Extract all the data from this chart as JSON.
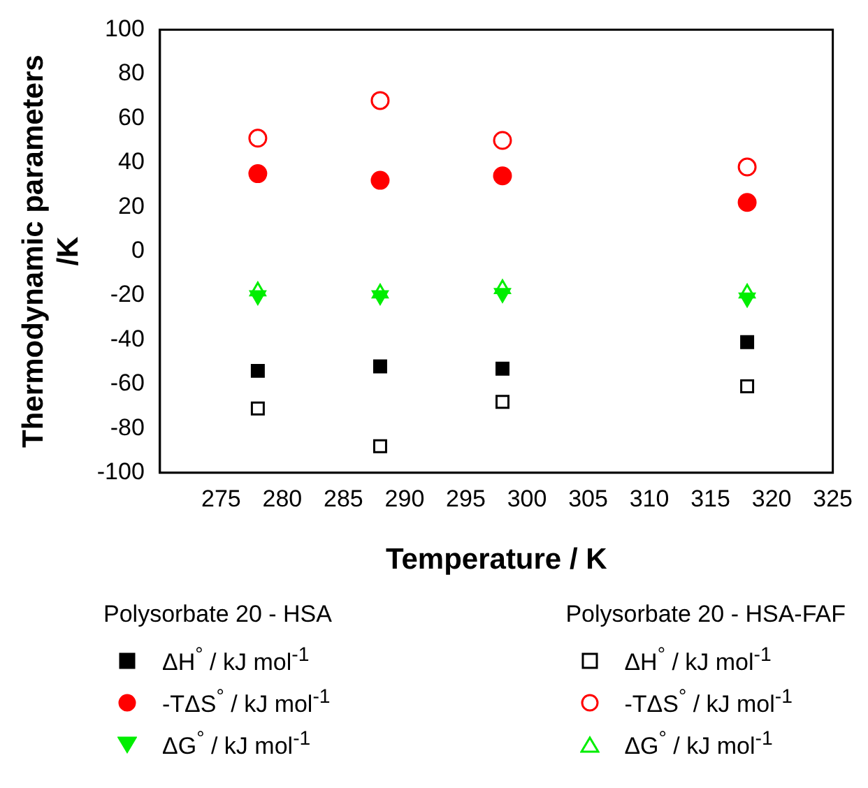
{
  "chart_data": {
    "type": "scatter",
    "xlabel": "Temperature / K",
    "ylabel": "Thermodynamic parameters\n/K",
    "xlim": [
      270,
      325
    ],
    "xticks": [
      275,
      280,
      285,
      290,
      295,
      300,
      305,
      310,
      315,
      320,
      325
    ],
    "ylim": [
      -100,
      100
    ],
    "yticks": [
      -100,
      -80,
      -60,
      -40,
      -20,
      0,
      20,
      40,
      60,
      80,
      100
    ],
    "grid": false,
    "legend": "bottom",
    "annotations": [
      "Polysorbate 20 - HSA",
      "Polysorbate 20 - HSA-FAF"
    ],
    "x": [
      278,
      288,
      298,
      318
    ],
    "series": [
      {
        "name": "ΔH$^{°}$ / kJ mol$^{-1}$",
        "color": "#000000",
        "marker": "square",
        "values": [
          -54,
          -52,
          -53,
          -41
        ]
      },
      {
        "name": "-TΔS$^{°}$ / kJ mol$^{-1}$",
        "color": "#ff0000",
        "marker": "circle",
        "values": [
          35,
          32,
          34,
          22
        ]
      },
      {
        "name": "ΔG$^{°}$ / kJ mol$^{-1}$",
        "color": "#00ee00",
        "marker": "triangle",
        "values": [
          -20,
          -20,
          -19,
          -21
        ]
      },
      {
        "name": "ΔH$^{°}$ / kJ mol$^{-1}$",
        "color": "#000000",
        "marker": "square",
        "values": [
          -71,
          -88,
          -68,
          -61
        ]
      },
      {
        "name": "-TΔS$^{°}$ / kJ mol$^{-1}$",
        "color": "#ff0000",
        "marker": "circle",
        "values": [
          51,
          68,
          50,
          38
        ]
      },
      {
        "name": "ΔG$^{°}$ / kJ mol$^{-1}$",
        "color": "#00ee00",
        "marker": "triangle",
        "values": [
          -18,
          -19,
          -17,
          -19
        ]
      }
    ]
  }
}
